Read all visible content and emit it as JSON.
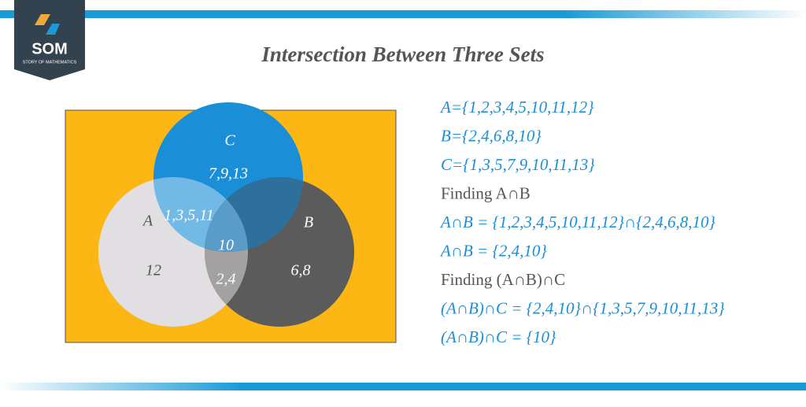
{
  "logo": {
    "name": "SOM",
    "tagline": "STORY OF MATHEMATICS"
  },
  "title": "Intersection Between Three Sets",
  "venn": {
    "sets": {
      "A": "A",
      "B": "B",
      "C": "C"
    },
    "regions": {
      "c_only": "7,9,13",
      "a_c": "1,3,5,11",
      "center": "10",
      "a_only": "12",
      "a_b": "2,4",
      "b_only": "6,8"
    }
  },
  "lines": [
    "A={1,2,3,4,5,10,11,12}",
    "B={2,4,6,8,10}",
    "C={1,3,5,7,9,10,11,13}",
    "Finding A∩B",
    "A∩B = {1,2,3,4,5,10,11,12}∩{2,4,6,8,10}",
    "A∩B = {2,4,10}",
    "Finding (A∩B)∩C",
    "(A∩B)∩C = {2,4,10}∩{1,3,5,7,9,10,11,13}",
    "(A∩B)∩C  = {10}"
  ]
}
